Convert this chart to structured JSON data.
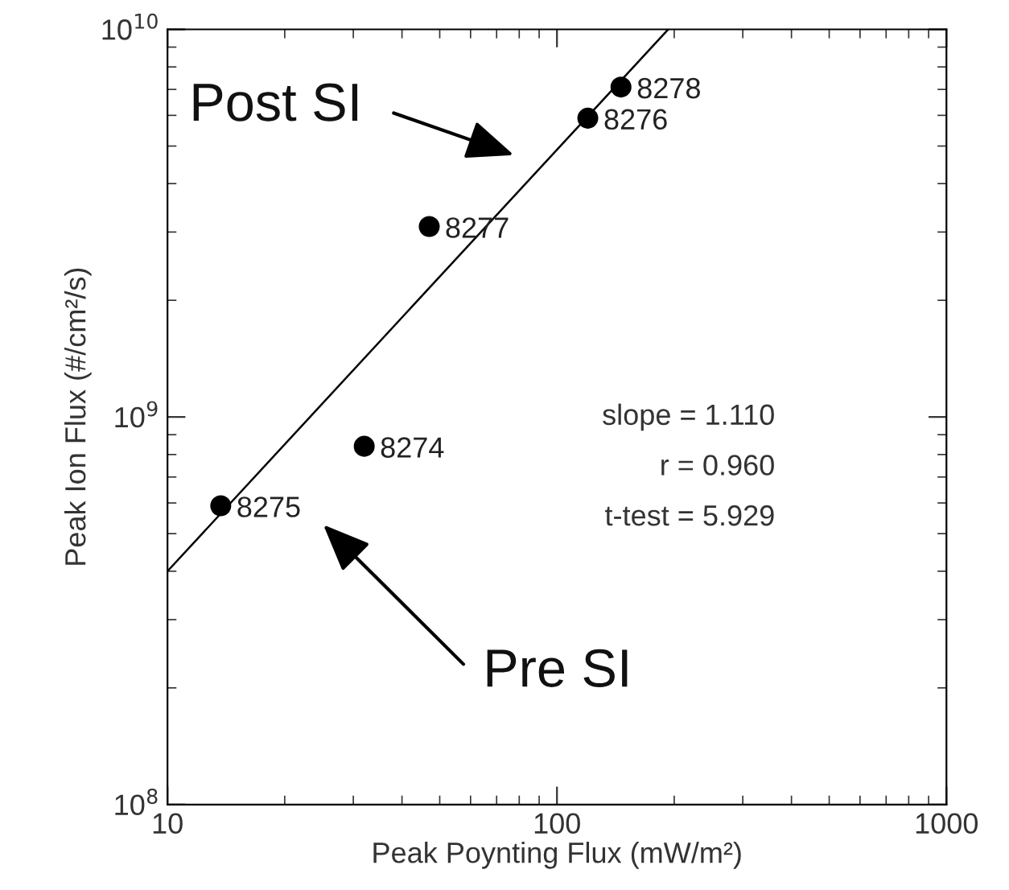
{
  "chart_data": {
    "type": "scatter",
    "xlabel": "Peak Poynting Flux (mW/m²)",
    "ylabel": "Peak Ion Flux (#/cm²/s)",
    "log": "xy",
    "xlim": [
      10,
      1000
    ],
    "ylim": [
      100000000,
      10000000000
    ],
    "xticks": [
      10,
      100,
      1000
    ],
    "yticks": [
      {
        "value": 100000000,
        "label": "10$^{8}$"
      },
      {
        "value": 1000000000,
        "label": "10$^{9}$"
      },
      {
        "value": 10000000000,
        "label": "10$^{10}$"
      }
    ],
    "grid": false,
    "series": [
      {
        "color": "#000000",
        "marker": "circle",
        "x": [
          13.7,
          32,
          47,
          120,
          146
        ],
        "values": [
          590000000,
          840000000,
          3100000000,
          5900000000,
          7100000000
        ]
      },
      {
        "type": "line",
        "color": "#000000",
        "line_style": "solid",
        "marker": "none",
        "x": [
          10,
          193
        ],
        "values": [
          400000000,
          10000000000
        ]
      }
    ],
    "annotations": [
      {
        "text": "8275",
        "x": 13.7,
        "y": 590000000
      },
      {
        "text": "8274",
        "x": 32,
        "y": 840000000
      },
      {
        "text": "8277",
        "x": 47,
        "y": 3100000000
      },
      {
        "text": "8276",
        "x": 120,
        "y": 5900000000
      },
      {
        "text": "8278",
        "x": 146,
        "y": 7100000000
      },
      "Post SI",
      "Pre SI",
      "slope = 1.110",
      "r = 0.960",
      "t-test = 5.929"
    ]
  }
}
